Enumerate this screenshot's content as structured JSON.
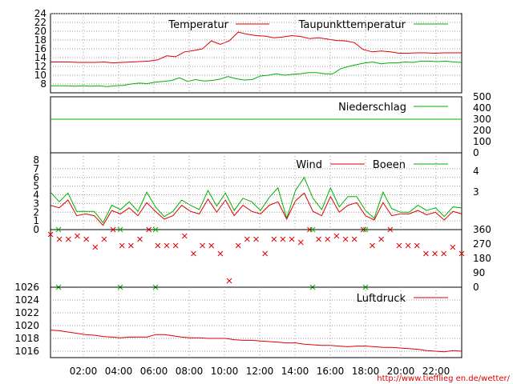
{
  "url": "http://www.tiefflieg en.de/wetter/",
  "colors": {
    "red": "#e00000",
    "green": "#00b000",
    "grid": "#9a9a9a"
  },
  "x_ticks": [
    "02:00",
    "04:00",
    "06:00",
    "08:00",
    "10:00",
    "12:00",
    "14:00",
    "16:00",
    "18:00",
    "20:00",
    "22:00"
  ],
  "chart_data": [
    {
      "type": "line",
      "x_labels": [
        "02:00",
        "04:00",
        "06:00",
        "08:00",
        "10:00",
        "12:00",
        "14:00",
        "16:00",
        "18:00",
        "20:00",
        "22:00"
      ],
      "ylim": [
        6,
        24
      ],
      "y_ticks": [
        8,
        10,
        12,
        14,
        16,
        18,
        20,
        22,
        24
      ],
      "grid": true,
      "legend": "top-right",
      "series": [
        {
          "name": "Temperatur",
          "color": "#e00000",
          "values": [
            13,
            13,
            13,
            12.9,
            12.9,
            12.9,
            13,
            12.8,
            12.9,
            13,
            13.1,
            13.2,
            13.5,
            14.4,
            14.2,
            15.3,
            15.6,
            16,
            17.8,
            17,
            17.8,
            19.8,
            19.3,
            19,
            18.9,
            18.5,
            18.7,
            19,
            18.8,
            18.3,
            18.5,
            18.2,
            17.9,
            17.8,
            17.4,
            15.8,
            15.3,
            15.5,
            15.3,
            15,
            15,
            15.1,
            15.1,
            15,
            15.1,
            15.1,
            15.1
          ]
        },
        {
          "name": "Taupunkttemperatur",
          "color": "#00b000",
          "values": [
            7.6,
            7.6,
            7.6,
            7.5,
            7.6,
            7.5,
            7.6,
            7.4,
            7.6,
            7.7,
            8,
            8.2,
            8.1,
            8.4,
            8.6,
            8.8,
            9.4,
            8.6,
            9,
            8.7,
            8.8,
            9.1,
            9.7,
            9.2,
            8.9,
            9,
            9.8,
            10,
            10.3,
            10,
            10.2,
            10.3,
            10.6,
            10.6,
            10.3,
            10.3,
            11.5,
            12,
            12.4,
            12.8,
            13,
            12.6,
            12.8,
            12.8,
            13,
            12.9,
            13.2,
            13.2,
            13.1,
            13.2,
            13,
            12.9
          ]
        }
      ]
    },
    {
      "type": "line",
      "ylim": [
        0,
        500
      ],
      "y_ticks": [
        0,
        100,
        200,
        300,
        400,
        500
      ],
      "axis_side": "right",
      "legend": "top-right",
      "series": [
        {
          "name": "Niederschlag",
          "color": "#00b000",
          "values": [
            300,
            300
          ]
        }
      ]
    },
    {
      "type": "line",
      "ylim": [
        0,
        8
      ],
      "y_ticks": [
        0,
        1,
        2,
        3,
        4,
        5,
        6,
        7,
        8
      ],
      "right_y_ticks": [
        "3",
        "4"
      ],
      "legend": "top-right",
      "series": [
        {
          "name": "Wind",
          "color": "#e00000",
          "values": [
            2.8,
            2.5,
            3.4,
            1.6,
            1.8,
            1.6,
            0.5,
            2.2,
            1.8,
            2.5,
            1.6,
            3.1,
            2.1,
            1.2,
            1.6,
            2.8,
            2.1,
            1.8,
            3.5,
            2.0,
            3.4,
            1.6,
            2.8,
            2.1,
            1.8,
            2.8,
            3.2,
            1.2,
            3.3,
            4.2,
            2.1,
            1.6,
            3.8,
            2.0,
            2.8,
            3.1,
            1.6,
            1.1,
            3.1,
            1.6,
            1.8,
            1.8,
            2.2,
            1.7,
            2.0,
            1.1,
            2.1,
            1.8
          ]
        },
        {
          "name": "Boeen",
          "color": "#00b000",
          "values": [
            4.3,
            3.2,
            4.2,
            2.1,
            2.1,
            2.1,
            0.8,
            2.8,
            2.3,
            3.2,
            2.1,
            4.3,
            2.6,
            1.5,
            2.1,
            3.4,
            2.8,
            2.3,
            4.5,
            2.7,
            4.2,
            2.2,
            3.6,
            3.2,
            2.2,
            3.7,
            4.8,
            1.3,
            4.5,
            6.0,
            3.6,
            2.3,
            4.8,
            2.6,
            3.8,
            3.8,
            2.2,
            1.3,
            4.3,
            2.4,
            2.0,
            2.0,
            2.8,
            2.2,
            2.5,
            1.5,
            2.6,
            2.5
          ]
        }
      ]
    },
    {
      "type": "scatter",
      "ylim": [
        0,
        360
      ],
      "y_ticks": [
        0,
        90,
        180,
        270,
        360
      ],
      "axis_side": "right",
      "series": [
        {
          "name": "",
          "color": "#e00000",
          "values": [
            330,
            300,
            300,
            320,
            300,
            250,
            300,
            360,
            260,
            260,
            300,
            360,
            260,
            260,
            260,
            320,
            210,
            260,
            260,
            210,
            40,
            260,
            300,
            300,
            210,
            300,
            300,
            300,
            280,
            360,
            300,
            300,
            320,
            300,
            300,
            360,
            260,
            300,
            360,
            260,
            260,
            260,
            210,
            210,
            210,
            250,
            210
          ]
        },
        {
          "name": "",
          "color": "#00b000",
          "values": [
            0,
            360,
            0,
            360,
            0,
            360,
            0,
            360,
            0,
            360
          ]
        }
      ]
    },
    {
      "type": "line",
      "ylim": [
        1015,
        1026
      ],
      "y_ticks": [
        1016,
        1018,
        1020,
        1022,
        1024,
        1026
      ],
      "legend": "top-right",
      "series": [
        {
          "name": "Luftdruck",
          "color": "#e00000",
          "values": [
            1019.3,
            1019.2,
            1019,
            1018.8,
            1018.6,
            1018.5,
            1018.3,
            1018.2,
            1018.1,
            1018.2,
            1018.2,
            1018.2,
            1018.6,
            1018.6,
            1018.4,
            1018.2,
            1018.1,
            1018.1,
            1018,
            1018,
            1018,
            1017.8,
            1017.7,
            1017.7,
            1017.6,
            1017.5,
            1017.4,
            1017.3,
            1017.3,
            1017.1,
            1017,
            1016.9,
            1016.9,
            1016.8,
            1016.7,
            1016.8,
            1016.8,
            1016.7,
            1016.6,
            1016.6,
            1016.5,
            1016.4,
            1016.3,
            1016.1,
            1016,
            1015.9,
            1016.1,
            1016
          ]
        }
      ]
    }
  ]
}
